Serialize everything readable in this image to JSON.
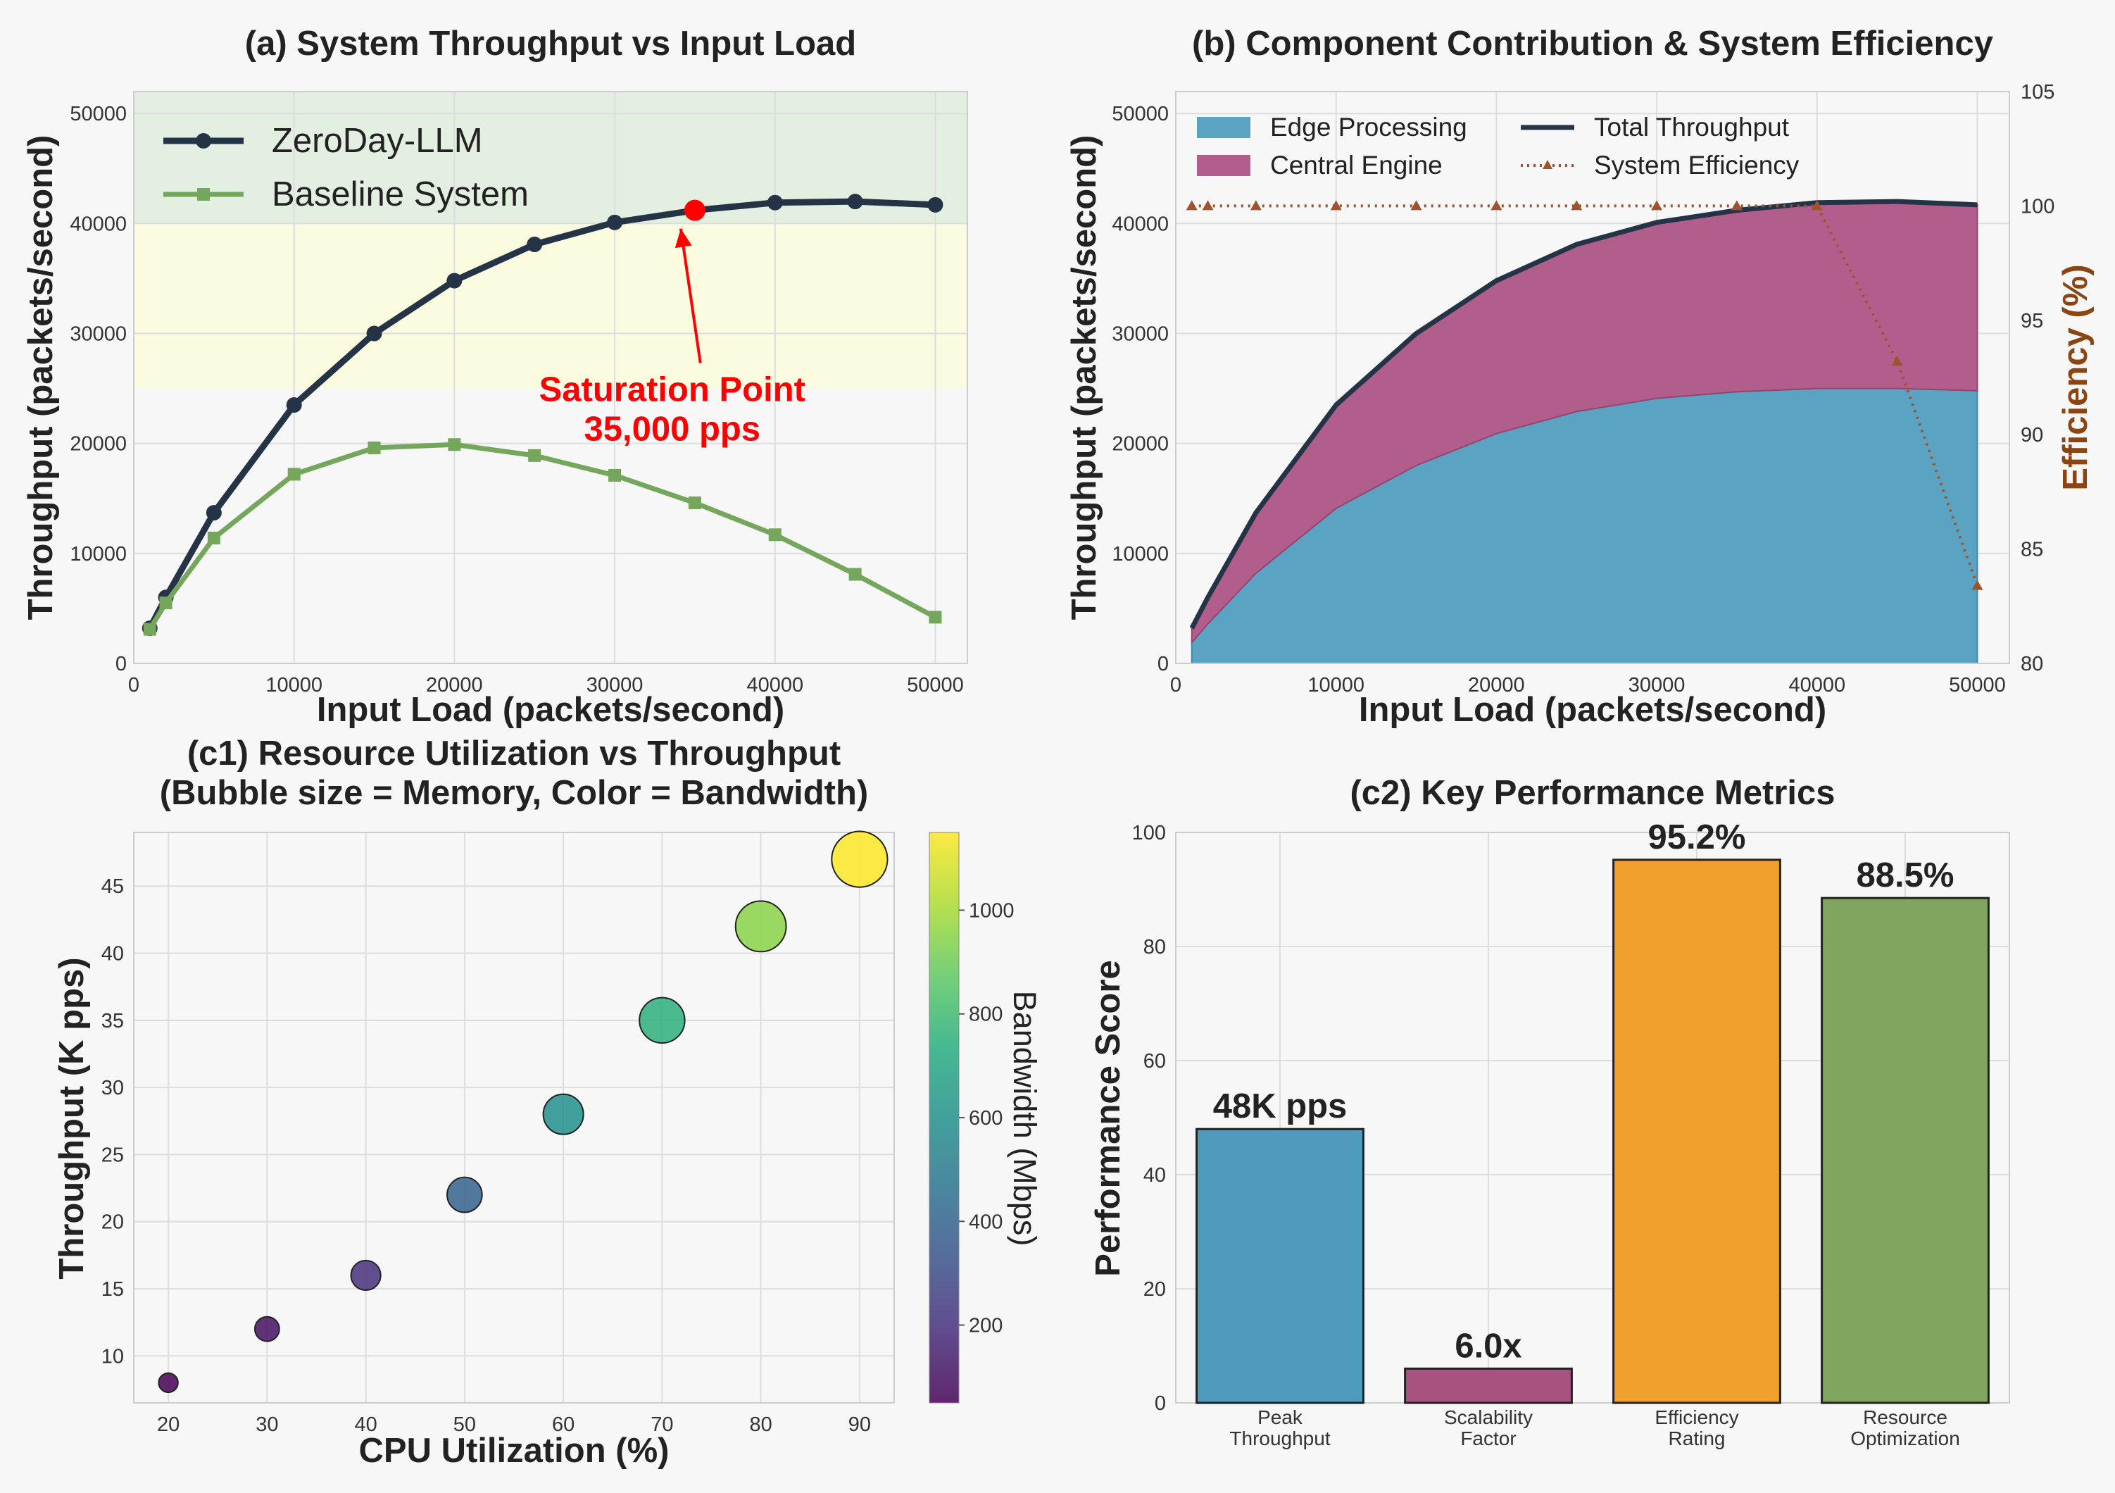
{
  "colors": {
    "background": "#f7f7f7",
    "zeroday": "#253347",
    "baseline": "#74a65c",
    "saturation": "#ff0000",
    "edge": "#5aa3c2",
    "central": "#b25e8c",
    "efficiency": "#a0522d",
    "zone_green": "#e3efe0",
    "zone_yellow": "#fbfbe0",
    "bar_peak": "#4f9bbd",
    "bar_scal": "#a8527f",
    "bar_eff": "#f0a02c",
    "bar_res": "#7ea65e",
    "grid": "#dddddd",
    "viridis": [
      "#440154",
      "#472d7b",
      "#3b528b",
      "#2c728e",
      "#21918c",
      "#28ae80",
      "#5ec962",
      "#addc30",
      "#fde725"
    ]
  },
  "chart_data": [
    {
      "id": "a",
      "type": "line",
      "title": "(a) System Throughput vs Input Load",
      "xlabel": "Input Load (packets/second)",
      "ylabel": "Throughput (packets/second)",
      "xlim": [
        0,
        52000
      ],
      "ylim": [
        0,
        52000
      ],
      "xticks": [
        0,
        10000,
        20000,
        30000,
        40000,
        50000
      ],
      "yticks": [
        0,
        10000,
        20000,
        30000,
        40000,
        50000
      ],
      "zones": [
        {
          "from": 40000,
          "to": 52000,
          "color": "zone_green"
        },
        {
          "from": 25000,
          "to": 40000,
          "color": "zone_yellow"
        }
      ],
      "x": [
        1000,
        2000,
        5000,
        10000,
        15000,
        20000,
        25000,
        30000,
        35000,
        40000,
        45000,
        50000
      ],
      "series": [
        {
          "name": "ZeroDay-LLM",
          "marker": "circle",
          "values": [
            3200,
            6000,
            13700,
            23500,
            30000,
            34800,
            38100,
            40100,
            41200,
            41900,
            42000,
            41700
          ]
        },
        {
          "name": "Baseline System",
          "marker": "square",
          "values": [
            3100,
            5500,
            11400,
            17200,
            19600,
            19900,
            18900,
            17100,
            14600,
            11700,
            8100,
            4200
          ]
        }
      ],
      "legend": "top-left",
      "annotation": {
        "line1": "Saturation Point",
        "line2": "35,000 pps",
        "point": [
          35000,
          41200
        ],
        "text_at": [
          27000,
          24500
        ]
      }
    },
    {
      "id": "b",
      "type": "area",
      "title": "(b) Component Contribution & System Efficiency",
      "xlabel": "Input Load (packets/second)",
      "ylabel": "Throughput (packets/second)",
      "y2label": "Efficiency (%)",
      "xlim": [
        0,
        52000
      ],
      "ylim": [
        0,
        52000
      ],
      "y2lim": [
        80,
        105
      ],
      "xticks": [
        0,
        10000,
        20000,
        30000,
        40000,
        50000
      ],
      "yticks": [
        0,
        10000,
        20000,
        30000,
        40000,
        50000
      ],
      "y2ticks": [
        80,
        85,
        90,
        95,
        100,
        105
      ],
      "x": [
        1000,
        2000,
        5000,
        10000,
        15000,
        20000,
        25000,
        30000,
        35000,
        40000,
        45000,
        50000
      ],
      "series": [
        {
          "name": "Edge Processing",
          "values": [
            1900,
            3600,
            8200,
            14100,
            18000,
            20900,
            22900,
            24100,
            24700,
            25000,
            25000,
            24800
          ]
        },
        {
          "name": "Central Engine",
          "values": [
            1300,
            2400,
            5500,
            9400,
            12000,
            13900,
            15200,
            16000,
            16500,
            16900,
            17000,
            16900
          ]
        },
        {
          "name": "Total Throughput",
          "values": [
            3200,
            6000,
            13700,
            23500,
            30000,
            34800,
            38100,
            40100,
            41200,
            41900,
            42000,
            41700
          ]
        },
        {
          "name": "System Efficiency",
          "axis": "right",
          "values": [
            100,
            100,
            100,
            100,
            100,
            100,
            100,
            100,
            100,
            100,
            93.2,
            83.4
          ]
        }
      ],
      "legend": "top-left"
    },
    {
      "id": "c1",
      "type": "scatter",
      "title": "(c1) Resource Utilization vs Throughput",
      "subtitle": "(Bubble size = Memory, Color = Bandwidth)",
      "xlabel": "CPU Utilization (%)",
      "ylabel": "Throughput (K pps)",
      "colorbar_label": "Bandwidth (Mbps)",
      "xlim": [
        16.5,
        93.5
      ],
      "ylim": [
        6.5,
        49
      ],
      "xticks": [
        20,
        30,
        40,
        50,
        60,
        70,
        80,
        90
      ],
      "yticks": [
        10,
        15,
        20,
        25,
        30,
        35,
        40,
        45
      ],
      "colorbar_range": [
        50,
        1150
      ],
      "colorbar_ticks": [
        200,
        400,
        600,
        800,
        1000
      ],
      "points": [
        {
          "cpu": 20,
          "throughput": 8,
          "bandwidth": 50,
          "memory": 1
        },
        {
          "cpu": 30,
          "throughput": 12,
          "bandwidth": 100,
          "memory": 2
        },
        {
          "cpu": 40,
          "throughput": 16,
          "bandwidth": 200,
          "memory": 3
        },
        {
          "cpu": 50,
          "throughput": 22,
          "bandwidth": 400,
          "memory": 4
        },
        {
          "cpu": 60,
          "throughput": 28,
          "bandwidth": 600,
          "memory": 5
        },
        {
          "cpu": 70,
          "throughput": 35,
          "bandwidth": 750,
          "memory": 6
        },
        {
          "cpu": 80,
          "throughput": 42,
          "bandwidth": 950,
          "memory": 7
        },
        {
          "cpu": 90,
          "throughput": 47,
          "bandwidth": 1150,
          "memory": 8
        }
      ]
    },
    {
      "id": "c2",
      "type": "bar",
      "title": "(c2) Key Performance Metrics",
      "ylabel": "Performance Score",
      "ylim": [
        0,
        100
      ],
      "yticks": [
        0,
        20,
        40,
        60,
        80,
        100
      ],
      "categories": [
        [
          "Peak",
          "Throughput"
        ],
        [
          "Scalability",
          "Factor"
        ],
        [
          "Efficiency",
          "Rating"
        ],
        [
          "Resource",
          "Optimization"
        ]
      ],
      "values": [
        48,
        6,
        95.2,
        88.5
      ],
      "value_labels": [
        "48K pps",
        "6.0x",
        "95.2%",
        "88.5%"
      ],
      "bar_colors": [
        "bar_peak",
        "bar_scal",
        "bar_eff",
        "bar_res"
      ]
    }
  ]
}
